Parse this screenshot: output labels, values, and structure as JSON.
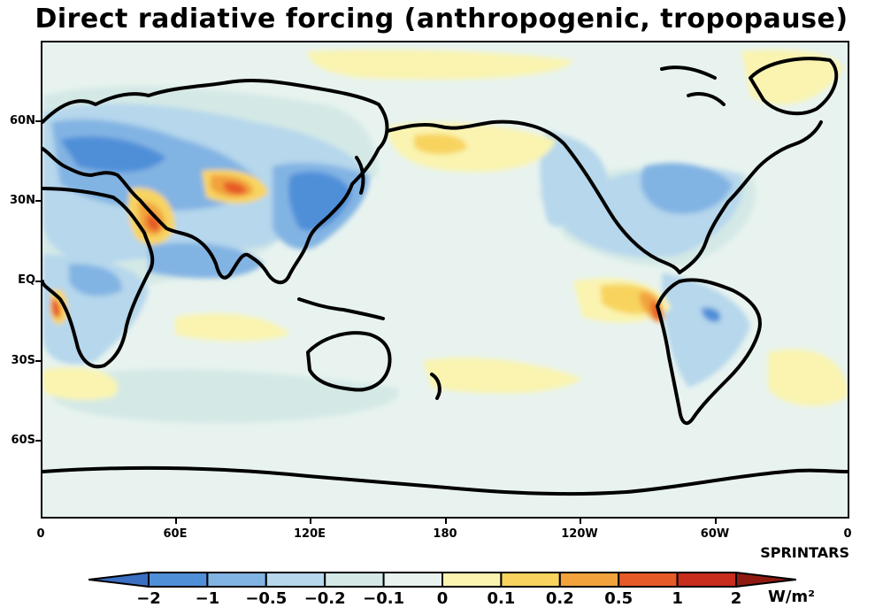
{
  "title": "Direct radiative forcing (anthropogenic, tropopause)",
  "credit": "SPRINTARS",
  "lat_labels": [
    "60N",
    "30N",
    "EQ",
    "30S",
    "60S"
  ],
  "lon_labels": [
    "0",
    "60E",
    "120E",
    "180",
    "120W",
    "60W",
    "0"
  ],
  "colorbar": {
    "labels": [
      "−2",
      "−1",
      "−0.5",
      "−0.2",
      "−0.1",
      "0",
      "0.1",
      "0.2",
      "0.5",
      "1",
      "2"
    ],
    "colors": [
      "#3a6fc2",
      "#4f8fd8",
      "#82b4e3",
      "#b6d7ec",
      "#d4e9e6",
      "#e8f3ef",
      "#faf4b0",
      "#f8d45e",
      "#f2a33c",
      "#e65a26",
      "#c72c1c",
      "#8f1a10"
    ],
    "units": "W/m²"
  }
}
